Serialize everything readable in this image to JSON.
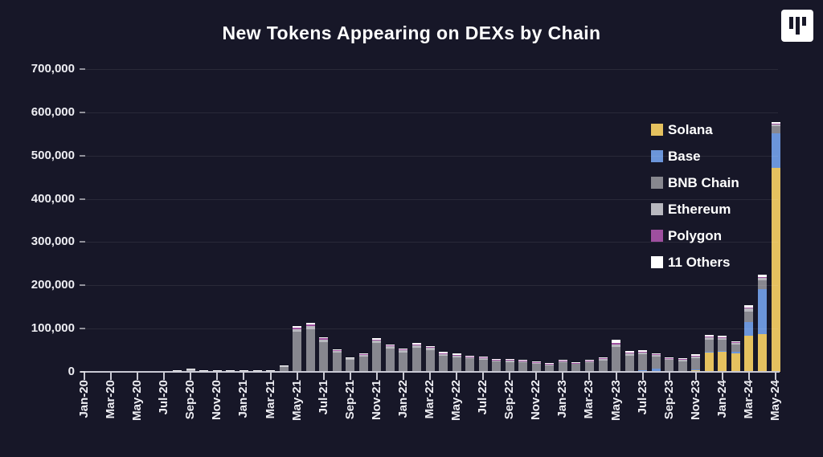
{
  "header": {
    "title": "New Tokens Appearing on DEXs by Chain"
  },
  "logo": {
    "name": "artemis-logo"
  },
  "chart_data": {
    "type": "bar",
    "stacked": true,
    "title": "New Tokens Appearing on DEXs by Chain",
    "xlabel": "",
    "ylabel": "",
    "ylim": [
      0,
      700000
    ],
    "ytick_step": 100000,
    "ytick_labels": [
      "0",
      "100,000",
      "200,000",
      "300,000",
      "400,000",
      "500,000",
      "600,000",
      "700,000"
    ],
    "grid": "horizontal-faint",
    "legend_position": "right-inside",
    "x_label_every": 2,
    "categories": [
      "Jan-20",
      "Feb-20",
      "Mar-20",
      "Apr-20",
      "May-20",
      "Jun-20",
      "Jul-20",
      "Aug-20",
      "Sep-20",
      "Oct-20",
      "Nov-20",
      "Dec-20",
      "Jan-21",
      "Feb-21",
      "Mar-21",
      "Apr-21",
      "May-21",
      "Jun-21",
      "Jul-21",
      "Aug-21",
      "Sep-21",
      "Oct-21",
      "Nov-21",
      "Dec-21",
      "Jan-22",
      "Feb-22",
      "Mar-22",
      "Apr-22",
      "May-22",
      "Jun-22",
      "Jul-22",
      "Aug-22",
      "Sep-22",
      "Oct-22",
      "Nov-22",
      "Dec-22",
      "Jan-23",
      "Feb-23",
      "Mar-23",
      "Apr-23",
      "May-23",
      "Jun-23",
      "Jul-23",
      "Aug-23",
      "Sep-23",
      "Oct-23",
      "Nov-23",
      "Dec-23",
      "Jan-24",
      "Feb-24",
      "Mar-24",
      "Apr-24",
      "May-24"
    ],
    "series": [
      {
        "name": "Solana",
        "color": "#e5c15f",
        "values": [
          0,
          0,
          0,
          0,
          0,
          0,
          0,
          0,
          0,
          0,
          0,
          0,
          0,
          0,
          0,
          0,
          0,
          0,
          0,
          0,
          0,
          0,
          0,
          0,
          0,
          0,
          0,
          0,
          0,
          0,
          0,
          0,
          0,
          0,
          0,
          0,
          0,
          0,
          0,
          0,
          2000,
          0,
          0,
          0,
          0,
          0,
          5000,
          44000,
          46000,
          43000,
          84000,
          87000,
          472000
        ]
      },
      {
        "name": "Base",
        "color": "#6b95da",
        "values": [
          0,
          0,
          0,
          0,
          0,
          0,
          0,
          0,
          0,
          0,
          0,
          0,
          0,
          0,
          0,
          0,
          0,
          0,
          0,
          0,
          0,
          0,
          0,
          0,
          0,
          0,
          0,
          0,
          0,
          0,
          0,
          0,
          0,
          0,
          0,
          0,
          0,
          0,
          0,
          0,
          0,
          0,
          4000,
          8000,
          2000,
          2000,
          1000,
          2000,
          2000,
          4000,
          31000,
          104000,
          80000
        ]
      },
      {
        "name": "BNB Chain",
        "color": "#87878f",
        "values": [
          300,
          300,
          500,
          500,
          700,
          700,
          900,
          1500,
          2500,
          1700,
          1300,
          1100,
          1500,
          1800,
          2200,
          11000,
          92000,
          99000,
          69000,
          44000,
          28000,
          36000,
          66000,
          54000,
          45000,
          56000,
          50000,
          38000,
          34000,
          31000,
          28000,
          24000,
          23000,
          22000,
          19000,
          15500,
          22000,
          18000,
          22000,
          26000,
          55000,
          38000,
          36000,
          27000,
          25000,
          23000,
          26000,
          28000,
          26000,
          17000,
          25000,
          21000,
          17000
        ]
      },
      {
        "name": "Ethereum",
        "color": "#b8b8bf",
        "values": [
          500,
          500,
          700,
          700,
          900,
          900,
          1200,
          1900,
          3000,
          2100,
          1600,
          1400,
          1400,
          1500,
          1600,
          2500,
          6000,
          7000,
          6000,
          4000,
          3000,
          3500,
          6000,
          5000,
          4500,
          5500,
          5000,
          4000,
          4000,
          3500,
          3500,
          3000,
          3000,
          3000,
          2500,
          2200,
          3000,
          2500,
          3000,
          3500,
          7000,
          5000,
          5000,
          4500,
          4000,
          3500,
          4500,
          6000,
          5000,
          3000,
          6000,
          5000,
          4000
        ]
      },
      {
        "name": "Polygon",
        "color": "#9e4f9f",
        "values": [
          0,
          0,
          0,
          0,
          0,
          0,
          0,
          0,
          0,
          0,
          0,
          0,
          0,
          100,
          100,
          500,
          4000,
          4000,
          3000,
          2000,
          1500,
          1500,
          3000,
          2500,
          2000,
          2500,
          2000,
          1500,
          1500,
          1200,
          1200,
          1000,
          1000,
          1000,
          800,
          700,
          1000,
          800,
          1000,
          1200,
          2000,
          1500,
          1500,
          1200,
          1000,
          900,
          1000,
          1000,
          1000,
          800,
          2000,
          2000,
          1000
        ]
      },
      {
        "name": "11 Others",
        "color": "#ffffff",
        "values": [
          200,
          200,
          300,
          300,
          400,
          400,
          400,
          600,
          1000,
          700,
          600,
          500,
          600,
          600,
          600,
          1000,
          3000,
          3000,
          2000,
          2000,
          1500,
          2000,
          3000,
          2500,
          2500,
          3000,
          3000,
          2500,
          2500,
          2300,
          2300,
          2000,
          2000,
          2000,
          1700,
          1600,
          2000,
          1700,
          2000,
          2300,
          8000,
          4500,
          3500,
          2300,
          2000,
          1600,
          3500,
          4000,
          3000,
          2200,
          7000,
          6000,
          4000
        ]
      }
    ]
  }
}
